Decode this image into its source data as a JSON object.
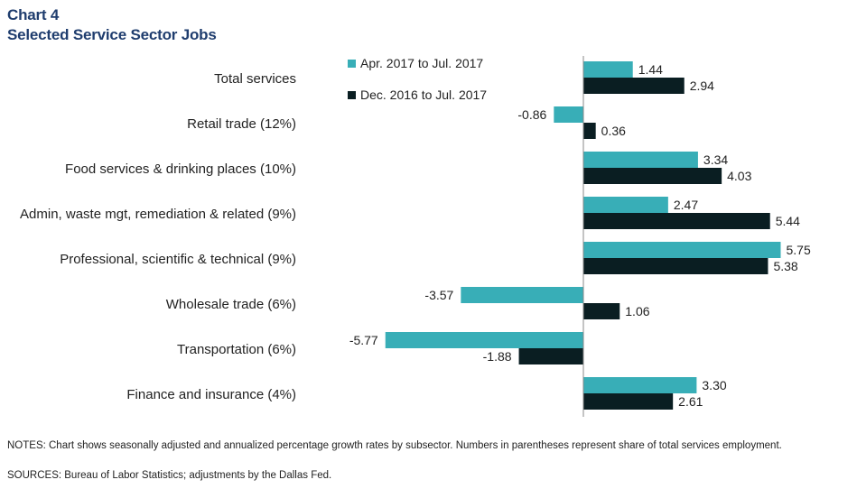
{
  "header": {
    "chart_number": "Chart 4",
    "title": "Selected Service Sector Jobs"
  },
  "footer": {
    "notes": "NOTES: Chart shows seasonally adjusted and annualized percentage growth rates by subsector. Numbers in parentheses represent share of total services employment.",
    "sources": "SOURCES: Bureau of Labor Statistics; adjustments by the Dallas Fed."
  },
  "colors": {
    "series1": "#38aeb7",
    "series2": "#0a1e22",
    "axis": "#888888"
  },
  "chart_data": {
    "type": "bar",
    "orientation": "horizontal",
    "title": "Selected Service Sector Jobs",
    "categories": [
      "Total services",
      "Retail trade (12%)",
      "Food services  & drinking places (10%)",
      "Admin, waste mgt, remediation & related (9%)",
      "Professional, scientific & technical (9%)",
      "Wholesale trade (6%)",
      "Transportation (6%)",
      "Finance and insurance (4%)"
    ],
    "series": [
      {
        "name": "Apr. 2017 to Jul. 2017",
        "values": [
          1.44,
          -0.86,
          3.34,
          2.47,
          5.75,
          -3.57,
          -5.77,
          3.3
        ],
        "labels": [
          "1.44",
          "-0.86",
          "3.34",
          "2.47",
          "5.75",
          "-3.57",
          "-5.77",
          "3.30"
        ]
      },
      {
        "name": "Dec. 2016 to Jul. 2017",
        "values": [
          2.94,
          0.36,
          4.03,
          5.44,
          5.38,
          1.06,
          -1.88,
          2.61
        ],
        "labels": [
          "2.94",
          "0.36",
          "4.03",
          "5.44",
          "5.38",
          "1.06",
          "-1.88",
          "2.61"
        ]
      }
    ],
    "xlim": [
      -6,
      6
    ],
    "grid": false,
    "legend": "top-center"
  }
}
